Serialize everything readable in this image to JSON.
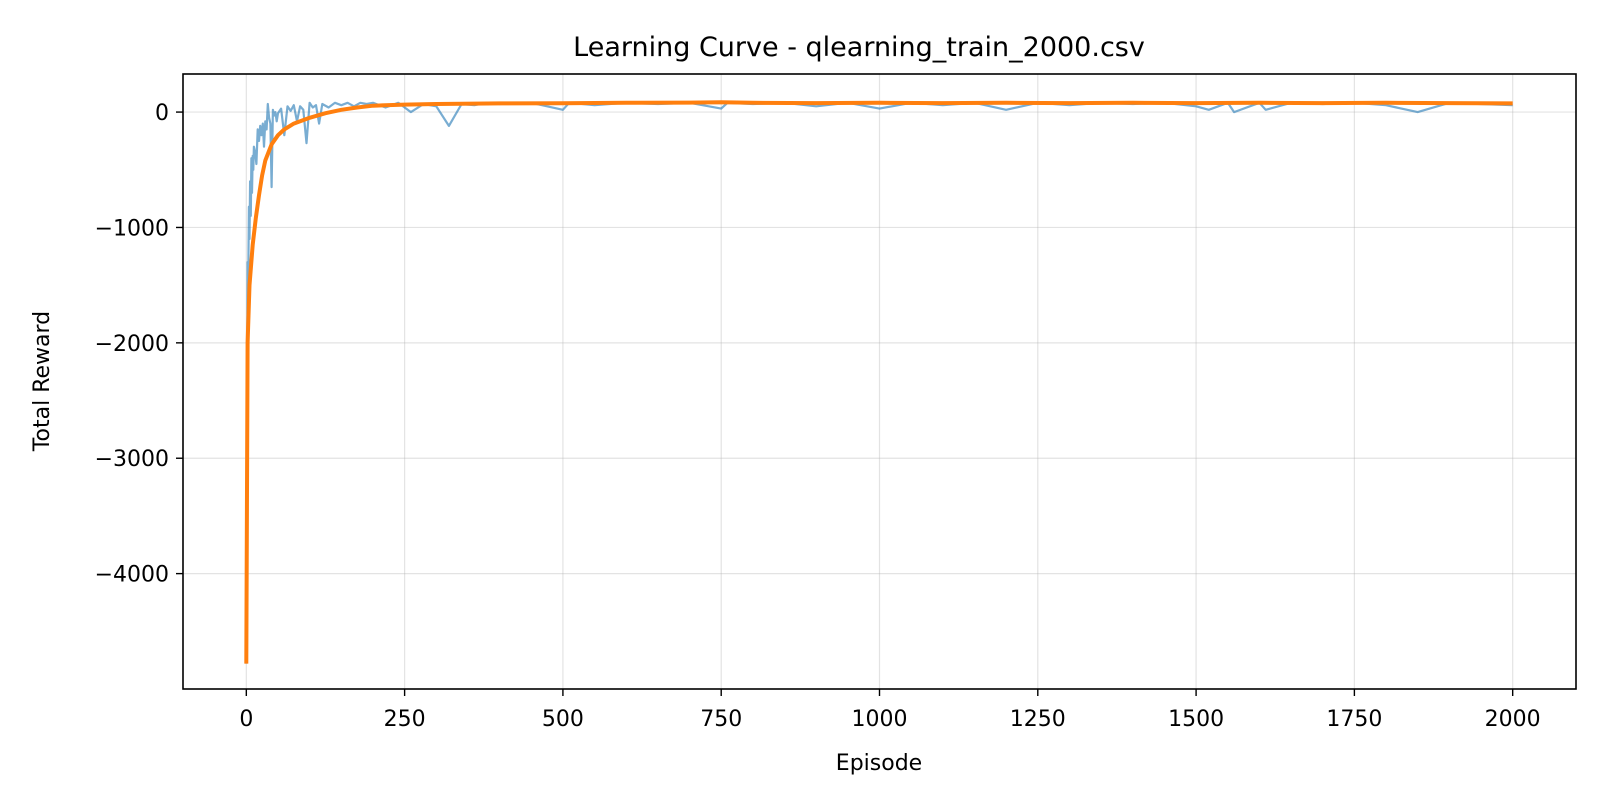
{
  "chart_data": {
    "type": "line",
    "title": "Learning Curve - qlearning_train_2000.csv",
    "xlabel": "Episode",
    "ylabel": "Total Reward",
    "xlim": [
      -100,
      2100
    ],
    "ylim": [
      -5000,
      330
    ],
    "x_ticks": [
      0,
      250,
      500,
      750,
      1000,
      1250,
      1500,
      1750,
      2000
    ],
    "y_ticks": [
      -4000,
      -3000,
      -2000,
      -1000,
      0
    ],
    "y_tick_labels": [
      "−4000",
      "−3000",
      "−2000",
      "−1000",
      "0"
    ],
    "grid": true,
    "legend": "none",
    "colors": {
      "raw": "#1f77b4",
      "smoothed": "#ff7f0e"
    },
    "series": [
      {
        "role": "raw",
        "x": [
          0,
          1,
          2,
          3,
          4,
          5,
          6,
          7,
          8,
          9,
          10,
          11,
          12,
          14,
          16,
          18,
          20,
          22,
          24,
          26,
          28,
          30,
          32,
          34,
          36,
          38,
          40,
          42,
          44,
          46,
          48,
          50,
          55,
          60,
          65,
          70,
          75,
          80,
          85,
          90,
          95,
          100,
          105,
          110,
          115,
          120,
          130,
          140,
          150,
          160,
          170,
          180,
          190,
          200,
          220,
          240,
          260,
          280,
          300,
          320,
          340,
          360,
          380,
          400,
          450,
          500,
          510,
          550,
          600,
          650,
          700,
          750,
          760,
          800,
          850,
          900,
          950,
          1000,
          1050,
          1100,
          1150,
          1200,
          1250,
          1300,
          1350,
          1400,
          1450,
          1500,
          1520,
          1550,
          1560,
          1600,
          1610,
          1650,
          1700,
          1750,
          1800,
          1850,
          1900,
          1950,
          2000
        ],
        "y": [
          -4780,
          -3000,
          -1300,
          -1500,
          -820,
          -1100,
          -600,
          -900,
          -400,
          -700,
          -380,
          -500,
          -300,
          -350,
          -450,
          -150,
          -250,
          -120,
          -200,
          -100,
          -300,
          -80,
          -150,
          70,
          -50,
          -100,
          -650,
          20,
          -30,
          0,
          -80,
          -10,
          30,
          -200,
          50,
          10,
          60,
          -80,
          50,
          20,
          -270,
          80,
          40,
          60,
          -100,
          70,
          40,
          80,
          60,
          80,
          50,
          80,
          70,
          80,
          40,
          80,
          0,
          70,
          50,
          -120,
          70,
          60,
          80,
          70,
          80,
          20,
          80,
          60,
          80,
          70,
          80,
          30,
          80,
          70,
          80,
          50,
          80,
          30,
          80,
          60,
          80,
          20,
          80,
          60,
          80,
          70,
          80,
          50,
          20,
          80,
          0,
          80,
          20,
          80,
          70,
          80,
          60,
          0,
          80,
          70,
          60
        ]
      },
      {
        "role": "smoothed",
        "x": [
          0,
          2,
          5,
          10,
          15,
          20,
          25,
          30,
          40,
          50,
          60,
          75,
          100,
          125,
          150,
          175,
          200,
          250,
          300,
          400,
          500,
          600,
          700,
          750,
          800,
          900,
          1000,
          1100,
          1200,
          1300,
          1400,
          1500,
          1600,
          1700,
          1800,
          1900,
          2000
        ],
        "y": [
          -4780,
          -2000,
          -1500,
          -1150,
          -920,
          -720,
          -550,
          -420,
          -280,
          -200,
          -150,
          -100,
          -50,
          -10,
          20,
          40,
          55,
          65,
          70,
          75,
          77,
          80,
          82,
          85,
          80,
          78,
          80,
          78,
          80,
          78,
          80,
          78,
          80,
          78,
          80,
          78,
          75
        ]
      }
    ]
  }
}
